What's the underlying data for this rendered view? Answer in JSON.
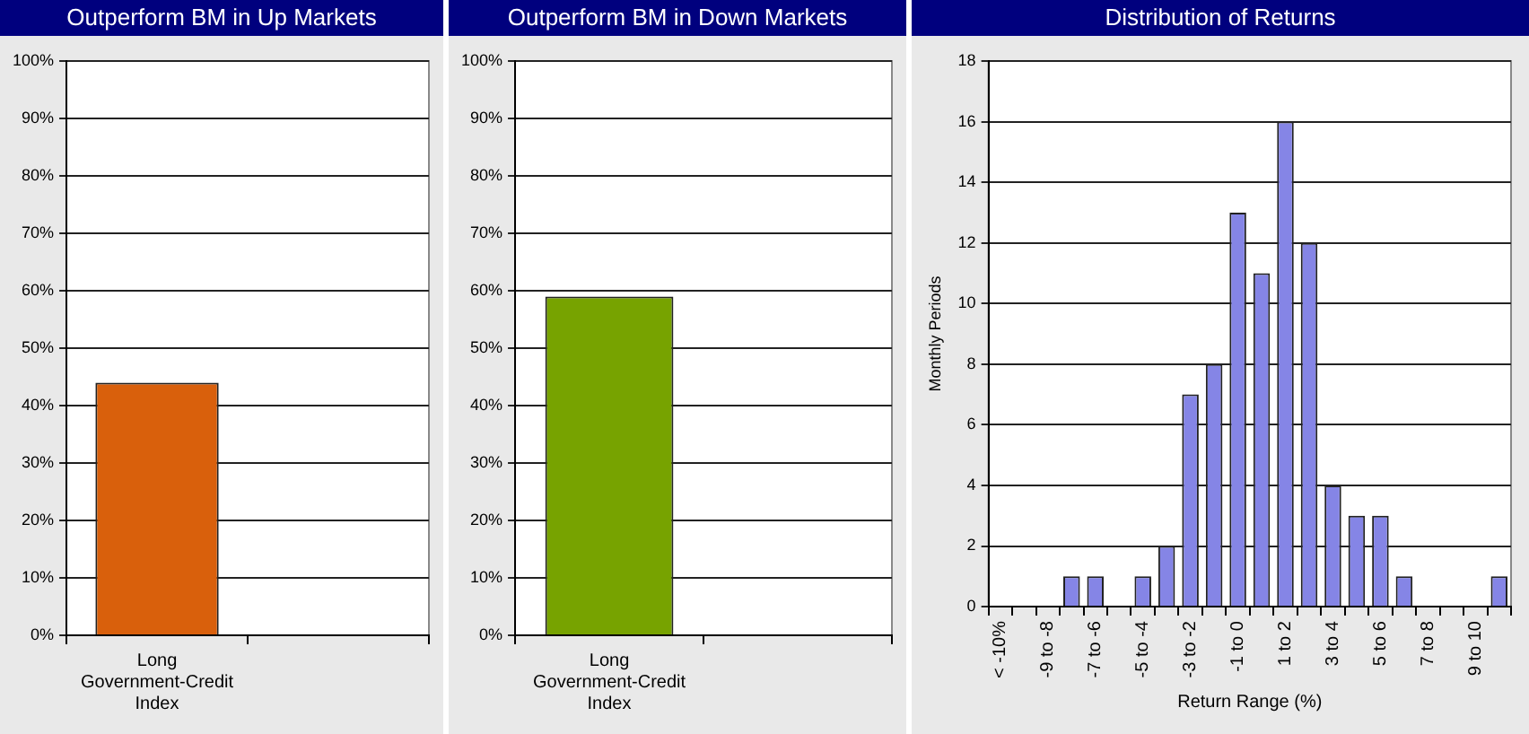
{
  "chart_data": [
    {
      "type": "bar",
      "title": "Outperform BM in Up Markets",
      "categories": [
        "Long Government-Credit Index",
        null
      ],
      "values": [
        44,
        null
      ],
      "color": "#d9600c",
      "ylim": [
        0,
        100
      ],
      "yticks": [
        {
          "value": 0,
          "label": "0%"
        },
        {
          "value": 10,
          "label": "10%"
        },
        {
          "value": 20,
          "label": "20%"
        },
        {
          "value": 30,
          "label": "30%"
        },
        {
          "value": 40,
          "label": "40%"
        },
        {
          "value": 50,
          "label": "50%"
        },
        {
          "value": 60,
          "label": "60%"
        },
        {
          "value": 70,
          "label": "70%"
        },
        {
          "value": 80,
          "label": "80%"
        },
        {
          "value": 90,
          "label": "90%"
        },
        {
          "value": 100,
          "label": "100%"
        }
      ],
      "grid": "y"
    },
    {
      "type": "bar",
      "title": "Outperform BM in Down Markets",
      "categories": [
        "Long Government-Credit Index",
        null
      ],
      "values": [
        59,
        null
      ],
      "color": "#77a300",
      "ylim": [
        0,
        100
      ],
      "yticks": [
        {
          "value": 0,
          "label": "0%"
        },
        {
          "value": 10,
          "label": "10%"
        },
        {
          "value": 20,
          "label": "20%"
        },
        {
          "value": 30,
          "label": "30%"
        },
        {
          "value": 40,
          "label": "40%"
        },
        {
          "value": 50,
          "label": "50%"
        },
        {
          "value": 60,
          "label": "60%"
        },
        {
          "value": 70,
          "label": "70%"
        },
        {
          "value": 80,
          "label": "80%"
        },
        {
          "value": 90,
          "label": "90%"
        },
        {
          "value": 100,
          "label": "100%"
        }
      ],
      "grid": "y"
    },
    {
      "type": "bar",
      "title": "Distribution of Returns",
      "xlabel": "Return Range (%)",
      "ylabel": "Monthly Periods",
      "categories": [
        "< -10%",
        null,
        "-9 to -8",
        null,
        "-7 to -6",
        null,
        "-5 to -4",
        null,
        "-3 to -2",
        null,
        "-1 to 0",
        null,
        "1 to 2",
        null,
        "3 to 4",
        null,
        "5 to 6",
        null,
        "7 to 8",
        null,
        "9 to 10",
        null
      ],
      "values": [
        0,
        0,
        0,
        1,
        1,
        0,
        1,
        2,
        7,
        8,
        13,
        11,
        16,
        12,
        4,
        3,
        3,
        1,
        0,
        0,
        0,
        1
      ],
      "color": "#8585e6",
      "ylim": [
        0,
        18
      ],
      "yticks": [
        0,
        2,
        4,
        6,
        8,
        10,
        12,
        14,
        16,
        18
      ],
      "grid": "y"
    }
  ]
}
